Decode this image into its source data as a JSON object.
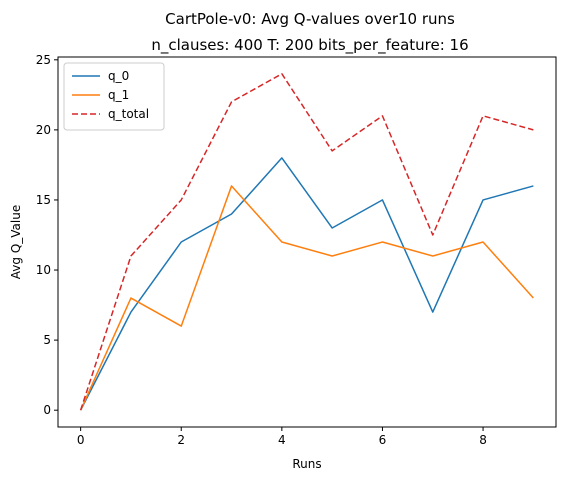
{
  "chart_data": {
    "type": "line",
    "title": "CartPole-v0: Avg Q-values over10 runs",
    "subtitle": "n_clauses: 400 T: 200 bits_per_feature: 16",
    "xlabel": "Runs",
    "ylabel": "Avg Q_Value",
    "x": [
      0,
      1,
      2,
      3,
      4,
      5,
      6,
      7,
      8,
      9
    ],
    "xlim": [
      -0.45,
      9.45
    ],
    "ylim": [
      -1.2,
      25.2
    ],
    "xticks": [
      0,
      2,
      4,
      6,
      8
    ],
    "yticks": [
      0,
      5,
      10,
      15,
      20,
      25
    ],
    "grid": false,
    "legend_position": "top-left",
    "series": [
      {
        "name": "q_0",
        "color": "#1f77b4",
        "style": "solid",
        "values": [
          0,
          7,
          12,
          14,
          18,
          13,
          15,
          7,
          15,
          16
        ]
      },
      {
        "name": "q_1",
        "color": "#ff7f0e",
        "style": "solid",
        "values": [
          0,
          8,
          6,
          16,
          12,
          11,
          12,
          11,
          12,
          8
        ]
      },
      {
        "name": "q_total",
        "color": "#d62728",
        "style": "dashed",
        "values": [
          0,
          11,
          15,
          22,
          24,
          18.5,
          21,
          12.5,
          21,
          20
        ]
      }
    ]
  }
}
